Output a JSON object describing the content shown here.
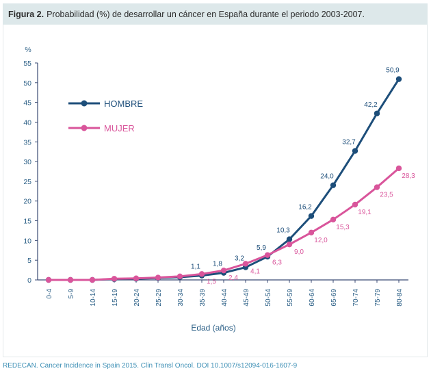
{
  "figure": {
    "label": "Figura 2.",
    "caption": "Probabilidad (%) de desarrollar un cáncer en España durante el periodo 2003-2007."
  },
  "source": "REDECAN. Cancer Incidence in Spain 2015. Clin Transl Oncol. DOI 10.1007/s12094-016-1607-9",
  "colors": {
    "hombre": "#1d4e7a",
    "mujer": "#d9559b",
    "axis": "#3a4a73",
    "text": "#2b5f86"
  },
  "chart_data": {
    "type": "line",
    "title": "Probabilidad (%) de desarrollar un cáncer en España durante el periodo 2003-2007.",
    "xlabel": "Edad (años)",
    "ylabel": "%",
    "ylim": [
      0,
      55
    ],
    "yticks": [
      0,
      5,
      10,
      15,
      20,
      25,
      30,
      35,
      40,
      45,
      50,
      55
    ],
    "grid": false,
    "legend": "top-left",
    "categories": [
      "0-4",
      "5-9",
      "10-14",
      "15-19",
      "20-24",
      "25-29",
      "30-34",
      "35-39",
      "40-44",
      "45-49",
      "50-54",
      "55-59",
      "60-64",
      "65-69",
      "70-74",
      "75-79",
      "80-84"
    ],
    "series": [
      {
        "name": "HOMBRE",
        "values": [
          0,
          0,
          0,
          0.2,
          0.3,
          0.5,
          0.7,
          1.1,
          1.8,
          3.2,
          5.9,
          10.3,
          16.2,
          24.0,
          32.7,
          42.2,
          50.9
        ],
        "labels": [
          "",
          "",
          "",
          "",
          "",
          "",
          "",
          "1,1",
          "1,8",
          "3,2",
          "5,9",
          "10,3",
          "16,2",
          "24,0",
          "32,7",
          "42,2",
          "50,9"
        ]
      },
      {
        "name": "MUJER",
        "values": [
          0,
          0,
          0,
          0.3,
          0.4,
          0.6,
          0.9,
          1.5,
          2.4,
          4.1,
          6.3,
          9.0,
          12.0,
          15.3,
          19.1,
          23.5,
          28.3
        ],
        "labels": [
          "",
          "",
          "",
          "",
          "",
          "",
          "",
          "1,5",
          "2,4",
          "4,1",
          "6,3",
          "9,0",
          "12,0",
          "15,3",
          "19,1",
          "23,5",
          "28,3"
        ]
      }
    ]
  }
}
